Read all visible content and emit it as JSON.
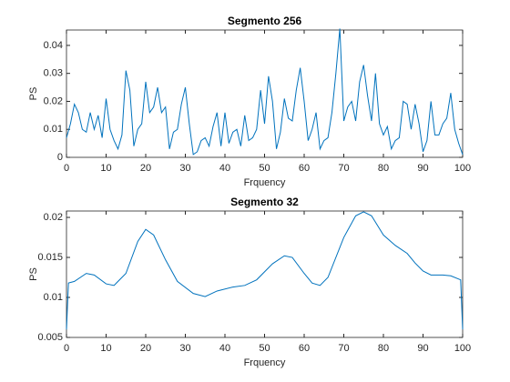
{
  "chart_data": [
    {
      "type": "line",
      "title": "Segmento 256",
      "x_label": "Frquency",
      "y_label": "PS",
      "xlim": [
        0,
        100
      ],
      "xticks": [
        0,
        10,
        20,
        30,
        40,
        50,
        60,
        70,
        80,
        90,
        100
      ],
      "ylim": [
        0,
        0.0455
      ],
      "yticks": [
        0,
        0.01,
        0.02,
        0.03,
        0.04
      ],
      "x": [
        0,
        1,
        2,
        3,
        4,
        5,
        6,
        7,
        8,
        9,
        10,
        11,
        12,
        13,
        14,
        15,
        16,
        17,
        18,
        19,
        20,
        21,
        22,
        23,
        24,
        25,
        26,
        27,
        28,
        29,
        30,
        31,
        32,
        33,
        34,
        35,
        36,
        37,
        38,
        39,
        40,
        41,
        42,
        43,
        44,
        45,
        46,
        47,
        48,
        49,
        50,
        51,
        52,
        53,
        54,
        55,
        56,
        57,
        58,
        59,
        60,
        61,
        62,
        63,
        64,
        65,
        66,
        67,
        68,
        69,
        70,
        71,
        72,
        73,
        74,
        75,
        76,
        77,
        78,
        79,
        80,
        81,
        82,
        83,
        84,
        85,
        86,
        87,
        88,
        89,
        90,
        91,
        92,
        93,
        94,
        95,
        96,
        97,
        98,
        99,
        100
      ],
      "series": [
        {
          "color": "#0072bd",
          "values": [
            0.007,
            0.012,
            0.019,
            0.016,
            0.01,
            0.009,
            0.016,
            0.01,
            0.015,
            0.007,
            0.021,
            0.01,
            0.006,
            0.003,
            0.008,
            0.031,
            0.024,
            0.004,
            0.01,
            0.012,
            0.027,
            0.016,
            0.018,
            0.025,
            0.016,
            0.018,
            0.003,
            0.009,
            0.01,
            0.019,
            0.025,
            0.012,
            0.001,
            0.002,
            0.006,
            0.007,
            0.004,
            0.011,
            0.016,
            0.004,
            0.016,
            0.005,
            0.009,
            0.01,
            0.004,
            0.015,
            0.006,
            0.007,
            0.01,
            0.024,
            0.012,
            0.029,
            0.02,
            0.003,
            0.009,
            0.021,
            0.014,
            0.013,
            0.024,
            0.032,
            0.02,
            0.006,
            0.01,
            0.016,
            0.003,
            0.006,
            0.007,
            0.016,
            0.03,
            0.046,
            0.013,
            0.018,
            0.02,
            0.013,
            0.027,
            0.033,
            0.022,
            0.013,
            0.03,
            0.012,
            0.008,
            0.011,
            0.003,
            0.006,
            0.007,
            0.02,
            0.019,
            0.01,
            0.019,
            0.012,
            0.002,
            0.006,
            0.02,
            0.008,
            0.008,
            0.012,
            0.014,
            0.023,
            0.01,
            0.005,
            0.001
          ]
        }
      ]
    },
    {
      "type": "line",
      "title": "Segmento 32",
      "x_label": "Frquency",
      "y_label": "PS",
      "xlim": [
        0,
        100
      ],
      "xticks": [
        0,
        10,
        20,
        30,
        40,
        50,
        60,
        70,
        80,
        90,
        100
      ],
      "ylim": [
        0.005,
        0.0208
      ],
      "yticks": [
        0.005,
        0.01,
        0.015,
        0.02
      ],
      "x": [
        0,
        0.5,
        2,
        5,
        7,
        10,
        12,
        15,
        18,
        20,
        22,
        25,
        28,
        32,
        35,
        38,
        42,
        45,
        48,
        52,
        55,
        57,
        60,
        62,
        64,
        66,
        70,
        73,
        75,
        77,
        80,
        83,
        86,
        88,
        90,
        92,
        95,
        97,
        99.5,
        100
      ],
      "series": [
        {
          "color": "#0072bd",
          "values": [
            0.006,
            0.0118,
            0.012,
            0.013,
            0.0128,
            0.0117,
            0.0115,
            0.013,
            0.017,
            0.0185,
            0.0178,
            0.0147,
            0.012,
            0.0105,
            0.0101,
            0.0108,
            0.0113,
            0.0115,
            0.0122,
            0.0142,
            0.0152,
            0.015,
            0.013,
            0.0118,
            0.0115,
            0.0125,
            0.0175,
            0.0202,
            0.0207,
            0.0202,
            0.0178,
            0.0165,
            0.0155,
            0.0143,
            0.0133,
            0.0128,
            0.0128,
            0.0127,
            0.0122,
            0.006
          ]
        }
      ]
    }
  ]
}
